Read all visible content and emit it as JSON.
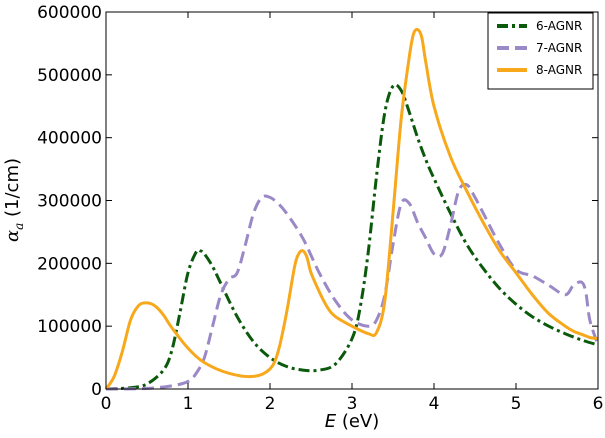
{
  "chart_data": {
    "type": "line",
    "xlabel": {
      "symbol": "E",
      "unit": " (eV)"
    },
    "ylabel": {
      "symbol": "α",
      "subscript": "a",
      "unit": " (1/cm)"
    },
    "xlim": [
      0,
      6
    ],
    "ylim": [
      0,
      600000
    ],
    "xticks": [
      0,
      1,
      2,
      3,
      4,
      5,
      6
    ],
    "yticks": [
      0,
      100000,
      200000,
      300000,
      400000,
      500000,
      600000
    ],
    "xtick_labels": [
      "0",
      "1",
      "2",
      "3",
      "4",
      "5",
      "6"
    ],
    "ytick_labels": [
      "0",
      "100000",
      "200000",
      "300000",
      "400000",
      "500000",
      "600000"
    ],
    "grid": false,
    "legend_position": "top-right",
    "series": [
      {
        "name": "6-AGNR",
        "color": "#0b5a0b",
        "style": "dash-dot",
        "x": [
          0.0,
          0.3,
          0.5,
          0.7,
          0.8,
          0.9,
          1.0,
          1.1,
          1.15,
          1.2,
          1.3,
          1.4,
          1.6,
          1.8,
          2.0,
          2.2,
          2.4,
          2.6,
          2.8,
          3.0,
          3.1,
          3.2,
          3.3,
          3.4,
          3.5,
          3.6,
          3.7,
          3.8,
          3.9,
          4.0,
          4.2,
          4.4,
          4.6,
          4.8,
          5.0,
          5.2,
          5.4,
          5.6,
          5.8,
          6.0
        ],
        "values": [
          0,
          2000,
          8000,
          30000,
          60000,
          120000,
          185000,
          218000,
          220000,
          215000,
          195000,
          168000,
          115000,
          75000,
          50000,
          36000,
          30000,
          30000,
          40000,
          80000,
          130000,
          220000,
          340000,
          440000,
          482000,
          475000,
          440000,
          400000,
          365000,
          335000,
          280000,
          230000,
          192000,
          160000,
          135000,
          115000,
          100000,
          88000,
          78000,
          70000
        ]
      },
      {
        "name": "7-AGNR",
        "color": "#9b88c7",
        "style": "dashed",
        "x": [
          0.0,
          0.5,
          0.8,
          1.0,
          1.1,
          1.2,
          1.3,
          1.4,
          1.5,
          1.6,
          1.7,
          1.8,
          1.9,
          2.0,
          2.1,
          2.2,
          2.4,
          2.6,
          2.8,
          3.0,
          3.2,
          3.3,
          3.4,
          3.5,
          3.6,
          3.7,
          3.8,
          3.9,
          4.0,
          4.1,
          4.2,
          4.3,
          4.4,
          4.5,
          4.6,
          4.8,
          5.0,
          5.2,
          5.4,
          5.6,
          5.7,
          5.8,
          5.85,
          5.9,
          6.0
        ],
        "values": [
          0,
          1000,
          5000,
          12000,
          25000,
          50000,
          100000,
          150000,
          175000,
          185000,
          230000,
          280000,
          305000,
          305000,
          295000,
          280000,
          240000,
          185000,
          140000,
          110000,
          100000,
          110000,
          150000,
          230000,
          295000,
          295000,
          265000,
          240000,
          215000,
          215000,
          260000,
          315000,
          325000,
          305000,
          280000,
          230000,
          190000,
          180000,
          165000,
          150000,
          165000,
          170000,
          155000,
          110000,
          70000
        ]
      },
      {
        "name": "8-AGNR",
        "color": "#f7a81b",
        "style": "solid",
        "x": [
          0.0,
          0.1,
          0.2,
          0.3,
          0.4,
          0.5,
          0.6,
          0.7,
          0.8,
          1.0,
          1.2,
          1.5,
          1.8,
          2.0,
          2.1,
          2.2,
          2.3,
          2.35,
          2.4,
          2.45,
          2.5,
          2.6,
          2.7,
          2.8,
          3.0,
          3.2,
          3.3,
          3.4,
          3.5,
          3.6,
          3.7,
          3.75,
          3.8,
          3.85,
          3.9,
          4.0,
          4.2,
          4.4,
          4.6,
          4.8,
          5.0,
          5.2,
          5.4,
          5.6,
          5.7,
          5.8,
          5.9,
          6.0
        ],
        "values": [
          0,
          20000,
          60000,
          110000,
          133000,
          137000,
          132000,
          118000,
          98000,
          65000,
          42000,
          25000,
          20000,
          32000,
          60000,
          120000,
          195000,
          215000,
          220000,
          210000,
          185000,
          155000,
          130000,
          115000,
          100000,
          88000,
          90000,
          140000,
          280000,
          430000,
          530000,
          565000,
          572000,
          560000,
          520000,
          450000,
          370000,
          315000,
          265000,
          220000,
          185000,
          150000,
          120000,
          100000,
          92000,
          87000,
          82000,
          80000
        ]
      }
    ]
  }
}
